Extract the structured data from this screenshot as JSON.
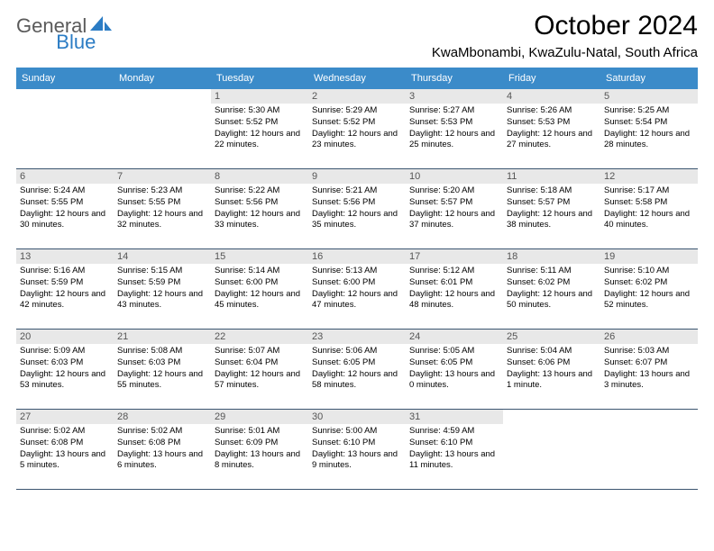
{
  "logo": {
    "part1": "General",
    "part2": "Blue"
  },
  "title": "October 2024",
  "location": "KwaMbonambi, KwaZulu-Natal, South Africa",
  "colors": {
    "header_bg": "#3b8bc9",
    "header_text": "#ffffff",
    "daynum_bg": "#e8e8e8",
    "daynum_text": "#555555",
    "week_border": "#3b5570",
    "logo_gray": "#5a5a5a",
    "logo_blue": "#2b7cc4"
  },
  "fonts": {
    "title_size_pt": 30,
    "location_size_pt": 15,
    "header_size_pt": 11,
    "daynum_size_pt": 11,
    "info_size_pt": 9.5
  },
  "day_names": [
    "Sunday",
    "Monday",
    "Tuesday",
    "Wednesday",
    "Thursday",
    "Friday",
    "Saturday"
  ],
  "weeks": [
    [
      {
        "n": "",
        "sr": "",
        "ss": "",
        "dl": ""
      },
      {
        "n": "",
        "sr": "",
        "ss": "",
        "dl": ""
      },
      {
        "n": "1",
        "sr": "Sunrise: 5:30 AM",
        "ss": "Sunset: 5:52 PM",
        "dl": "Daylight: 12 hours and 22 minutes."
      },
      {
        "n": "2",
        "sr": "Sunrise: 5:29 AM",
        "ss": "Sunset: 5:52 PM",
        "dl": "Daylight: 12 hours and 23 minutes."
      },
      {
        "n": "3",
        "sr": "Sunrise: 5:27 AM",
        "ss": "Sunset: 5:53 PM",
        "dl": "Daylight: 12 hours and 25 minutes."
      },
      {
        "n": "4",
        "sr": "Sunrise: 5:26 AM",
        "ss": "Sunset: 5:53 PM",
        "dl": "Daylight: 12 hours and 27 minutes."
      },
      {
        "n": "5",
        "sr": "Sunrise: 5:25 AM",
        "ss": "Sunset: 5:54 PM",
        "dl": "Daylight: 12 hours and 28 minutes."
      }
    ],
    [
      {
        "n": "6",
        "sr": "Sunrise: 5:24 AM",
        "ss": "Sunset: 5:55 PM",
        "dl": "Daylight: 12 hours and 30 minutes."
      },
      {
        "n": "7",
        "sr": "Sunrise: 5:23 AM",
        "ss": "Sunset: 5:55 PM",
        "dl": "Daylight: 12 hours and 32 minutes."
      },
      {
        "n": "8",
        "sr": "Sunrise: 5:22 AM",
        "ss": "Sunset: 5:56 PM",
        "dl": "Daylight: 12 hours and 33 minutes."
      },
      {
        "n": "9",
        "sr": "Sunrise: 5:21 AM",
        "ss": "Sunset: 5:56 PM",
        "dl": "Daylight: 12 hours and 35 minutes."
      },
      {
        "n": "10",
        "sr": "Sunrise: 5:20 AM",
        "ss": "Sunset: 5:57 PM",
        "dl": "Daylight: 12 hours and 37 minutes."
      },
      {
        "n": "11",
        "sr": "Sunrise: 5:18 AM",
        "ss": "Sunset: 5:57 PM",
        "dl": "Daylight: 12 hours and 38 minutes."
      },
      {
        "n": "12",
        "sr": "Sunrise: 5:17 AM",
        "ss": "Sunset: 5:58 PM",
        "dl": "Daylight: 12 hours and 40 minutes."
      }
    ],
    [
      {
        "n": "13",
        "sr": "Sunrise: 5:16 AM",
        "ss": "Sunset: 5:59 PM",
        "dl": "Daylight: 12 hours and 42 minutes."
      },
      {
        "n": "14",
        "sr": "Sunrise: 5:15 AM",
        "ss": "Sunset: 5:59 PM",
        "dl": "Daylight: 12 hours and 43 minutes."
      },
      {
        "n": "15",
        "sr": "Sunrise: 5:14 AM",
        "ss": "Sunset: 6:00 PM",
        "dl": "Daylight: 12 hours and 45 minutes."
      },
      {
        "n": "16",
        "sr": "Sunrise: 5:13 AM",
        "ss": "Sunset: 6:00 PM",
        "dl": "Daylight: 12 hours and 47 minutes."
      },
      {
        "n": "17",
        "sr": "Sunrise: 5:12 AM",
        "ss": "Sunset: 6:01 PM",
        "dl": "Daylight: 12 hours and 48 minutes."
      },
      {
        "n": "18",
        "sr": "Sunrise: 5:11 AM",
        "ss": "Sunset: 6:02 PM",
        "dl": "Daylight: 12 hours and 50 minutes."
      },
      {
        "n": "19",
        "sr": "Sunrise: 5:10 AM",
        "ss": "Sunset: 6:02 PM",
        "dl": "Daylight: 12 hours and 52 minutes."
      }
    ],
    [
      {
        "n": "20",
        "sr": "Sunrise: 5:09 AM",
        "ss": "Sunset: 6:03 PM",
        "dl": "Daylight: 12 hours and 53 minutes."
      },
      {
        "n": "21",
        "sr": "Sunrise: 5:08 AM",
        "ss": "Sunset: 6:03 PM",
        "dl": "Daylight: 12 hours and 55 minutes."
      },
      {
        "n": "22",
        "sr": "Sunrise: 5:07 AM",
        "ss": "Sunset: 6:04 PM",
        "dl": "Daylight: 12 hours and 57 minutes."
      },
      {
        "n": "23",
        "sr": "Sunrise: 5:06 AM",
        "ss": "Sunset: 6:05 PM",
        "dl": "Daylight: 12 hours and 58 minutes."
      },
      {
        "n": "24",
        "sr": "Sunrise: 5:05 AM",
        "ss": "Sunset: 6:05 PM",
        "dl": "Daylight: 13 hours and 0 minutes."
      },
      {
        "n": "25",
        "sr": "Sunrise: 5:04 AM",
        "ss": "Sunset: 6:06 PM",
        "dl": "Daylight: 13 hours and 1 minute."
      },
      {
        "n": "26",
        "sr": "Sunrise: 5:03 AM",
        "ss": "Sunset: 6:07 PM",
        "dl": "Daylight: 13 hours and 3 minutes."
      }
    ],
    [
      {
        "n": "27",
        "sr": "Sunrise: 5:02 AM",
        "ss": "Sunset: 6:08 PM",
        "dl": "Daylight: 13 hours and 5 minutes."
      },
      {
        "n": "28",
        "sr": "Sunrise: 5:02 AM",
        "ss": "Sunset: 6:08 PM",
        "dl": "Daylight: 13 hours and 6 minutes."
      },
      {
        "n": "29",
        "sr": "Sunrise: 5:01 AM",
        "ss": "Sunset: 6:09 PM",
        "dl": "Daylight: 13 hours and 8 minutes."
      },
      {
        "n": "30",
        "sr": "Sunrise: 5:00 AM",
        "ss": "Sunset: 6:10 PM",
        "dl": "Daylight: 13 hours and 9 minutes."
      },
      {
        "n": "31",
        "sr": "Sunrise: 4:59 AM",
        "ss": "Sunset: 6:10 PM",
        "dl": "Daylight: 13 hours and 11 minutes."
      },
      {
        "n": "",
        "sr": "",
        "ss": "",
        "dl": ""
      },
      {
        "n": "",
        "sr": "",
        "ss": "",
        "dl": ""
      }
    ]
  ]
}
